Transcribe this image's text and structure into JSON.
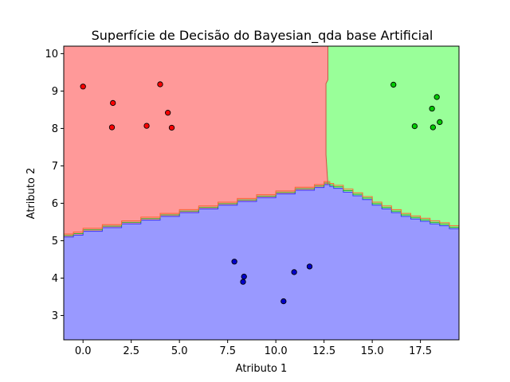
{
  "chart_data": {
    "type": "scatter",
    "title": "Superfície de Decisão do Bayesian_qda base Artificial",
    "xlabel": "Atributo 1",
    "ylabel": "Atributo 2",
    "xlim": [
      -1,
      19.5
    ],
    "ylim": [
      2.35,
      10.2
    ],
    "xticks": [
      "0.0",
      "2.5",
      "5.0",
      "7.5",
      "10.0",
      "12.5",
      "15.0",
      "17.5"
    ],
    "xtick_values": [
      0,
      2.5,
      5,
      7.5,
      10,
      12.5,
      15,
      17.5
    ],
    "yticks": [
      "3",
      "4",
      "5",
      "6",
      "7",
      "8",
      "9",
      "10"
    ],
    "ytick_values": [
      3,
      4,
      5,
      6,
      7,
      8,
      9,
      10
    ],
    "grid": false,
    "regions": [
      {
        "class": "red",
        "color": "#ff9999",
        "description_points": [
          [
            -1,
            5.1
          ],
          [
            12.7,
            6.5
          ]
        ]
      },
      {
        "class": "green",
        "color": "#99ff99"
      },
      {
        "class": "blue",
        "color": "#9999ff"
      }
    ],
    "boundary_blue": [
      [
        -1,
        5.1
      ],
      [
        -0.5,
        5.15
      ],
      [
        0,
        5.25
      ],
      [
        1,
        5.35
      ],
      [
        2,
        5.45
      ],
      [
        3,
        5.55
      ],
      [
        4,
        5.65
      ],
      [
        5,
        5.75
      ],
      [
        6,
        5.85
      ],
      [
        7,
        5.95
      ],
      [
        8,
        6.05
      ],
      [
        9,
        6.15
      ],
      [
        10,
        6.25
      ],
      [
        11,
        6.35
      ],
      [
        12,
        6.42
      ],
      [
        12.5,
        6.5
      ],
      [
        12.8,
        6.45
      ],
      [
        13,
        6.4
      ],
      [
        13.5,
        6.3
      ],
      [
        14,
        6.2
      ],
      [
        14.5,
        6.1
      ],
      [
        15,
        5.95
      ],
      [
        15.5,
        5.85
      ],
      [
        16,
        5.75
      ],
      [
        16.5,
        5.65
      ],
      [
        17,
        5.58
      ],
      [
        17.5,
        5.52
      ],
      [
        18,
        5.45
      ],
      [
        18.5,
        5.4
      ],
      [
        19,
        5.32
      ],
      [
        19.5,
        5.3
      ]
    ],
    "boundary_red_green": [
      [
        12.7,
        10.2
      ],
      [
        12.7,
        9.3
      ],
      [
        12.6,
        9.2
      ],
      [
        12.6,
        7.3
      ],
      [
        12.7,
        6.5
      ]
    ],
    "series": [
      {
        "color": "#ff0000",
        "points": [
          [
            0.0,
            9.12
          ],
          [
            1.55,
            8.68
          ],
          [
            1.5,
            8.03
          ],
          [
            3.3,
            8.07
          ],
          [
            4.0,
            9.18
          ],
          [
            4.4,
            8.42
          ],
          [
            4.6,
            8.02
          ]
        ]
      },
      {
        "color": "#00cc00",
        "points": [
          [
            16.1,
            9.17
          ],
          [
            17.2,
            8.06
          ],
          [
            18.1,
            8.53
          ],
          [
            18.15,
            8.03
          ],
          [
            18.35,
            8.84
          ],
          [
            18.5,
            8.17
          ]
        ]
      },
      {
        "color": "#0000cc",
        "points": [
          [
            7.85,
            4.44
          ],
          [
            8.3,
            3.9
          ],
          [
            8.35,
            4.04
          ],
          [
            10.4,
            3.38
          ],
          [
            10.95,
            4.16
          ],
          [
            11.75,
            4.31
          ]
        ]
      }
    ]
  }
}
